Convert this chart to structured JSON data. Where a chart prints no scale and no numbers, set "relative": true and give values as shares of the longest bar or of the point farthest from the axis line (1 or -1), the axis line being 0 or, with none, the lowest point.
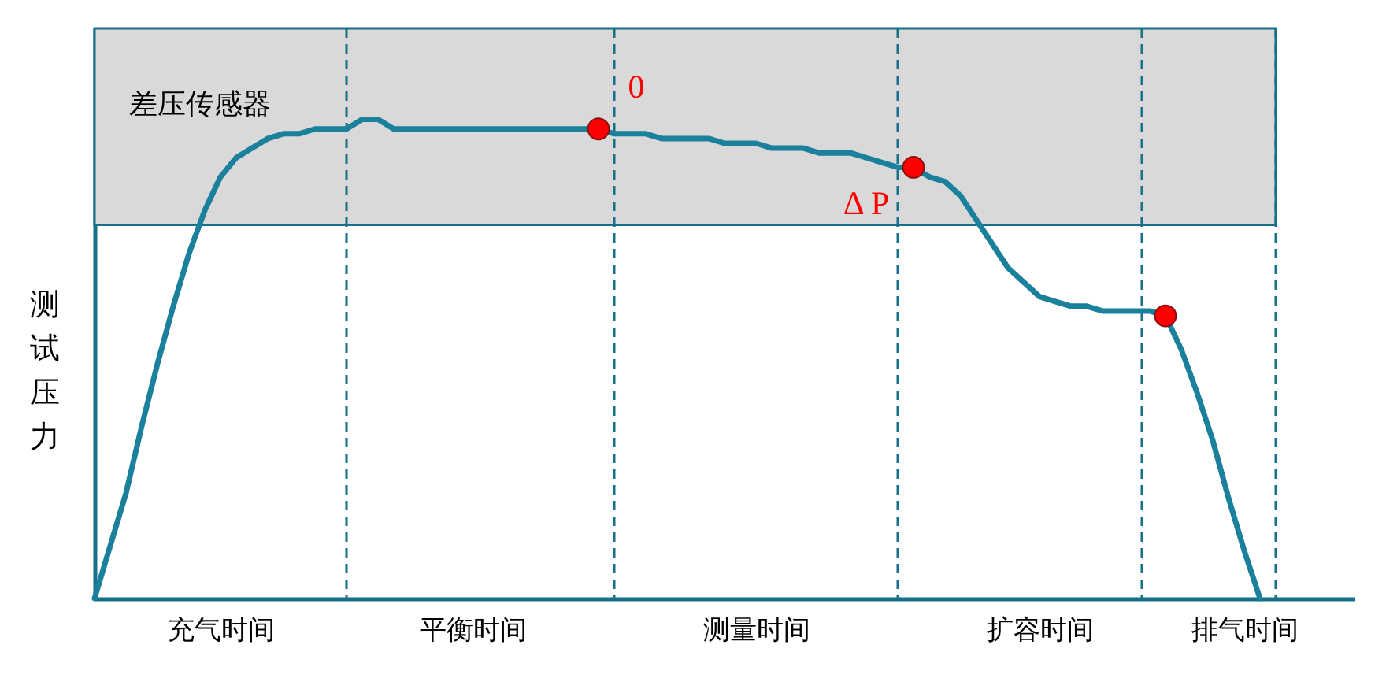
{
  "chart_data": {
    "type": "line",
    "relative": true,
    "ylabel": "测试压力",
    "categories": [
      null,
      null,
      null,
      null,
      null,
      null,
      null,
      null,
      "充气时间",
      null,
      null,
      null,
      null,
      null,
      null,
      null,
      null,
      null,
      null,
      null,
      null,
      null,
      null,
      null,
      "平衡时间",
      null,
      null,
      null,
      null,
      null,
      null,
      null,
      null,
      null,
      null,
      null,
      null,
      null,
      null,
      null,
      null,
      null,
      "测量时间",
      null,
      null,
      null,
      null,
      null,
      null,
      null,
      null,
      null,
      null,
      null,
      null,
      null,
      null,
      null,
      null,
      null,
      "扩容时间",
      null,
      null,
      null,
      null,
      null,
      null,
      null,
      null,
      null,
      null,
      null,
      null,
      "排气时间",
      null,
      null
    ],
    "series": [
      {
        "color": "#1a809c",
        "values": [
          0,
          0.11,
          0.22,
          0.36,
          0.49,
          0.61,
          0.72,
          0.81,
          0.88,
          0.92,
          0.94,
          0.96,
          0.97,
          0.97,
          0.98,
          0.98,
          0.98,
          1,
          1,
          0.98,
          0.98,
          0.98,
          0.98,
          0.98,
          0.98,
          0.98,
          0.98,
          0.98,
          0.98,
          0.98,
          0.98,
          0.98,
          0.98,
          0.97,
          0.97,
          0.97,
          0.96,
          0.96,
          0.96,
          0.96,
          0.95,
          0.95,
          0.95,
          0.94,
          0.94,
          0.94,
          0.93,
          0.93,
          0.93,
          0.92,
          0.91,
          0.9,
          0.9,
          0.88,
          0.87,
          0.84,
          0.79,
          0.74,
          0.69,
          0.66,
          0.63,
          0.62,
          0.61,
          0.61,
          0.6,
          0.6,
          0.6,
          0.6,
          0.59,
          0.52,
          0.43,
          0.33,
          0.21,
          0.1,
          0,
          null
        ]
      },
      {
        "type": "scatter",
        "color": "#ff0000",
        "values": [
          null,
          null,
          null,
          null,
          null,
          null,
          null,
          null,
          null,
          null,
          null,
          null,
          null,
          null,
          null,
          null,
          null,
          null,
          null,
          null,
          null,
          null,
          null,
          null,
          null,
          null,
          null,
          null,
          null,
          null,
          null,
          null,
          0.98,
          null,
          null,
          null,
          null,
          null,
          null,
          null,
          null,
          null,
          null,
          null,
          null,
          null,
          null,
          null,
          null,
          null,
          null,
          null,
          0.9,
          null,
          null,
          null,
          null,
          null,
          null,
          null,
          null,
          null,
          null,
          null,
          null,
          null,
          null,
          null,
          0.59,
          null,
          null,
          null,
          null,
          null,
          null,
          null
        ]
      }
    ],
    "bands": [
      {
        "axis": "y",
        "from": 0.78,
        "to": 1.19,
        "label": "差压传感器",
        "color": "#d9d9d9"
      }
    ],
    "annotations": [
      {
        "text": "0",
        "y": 0.98
      },
      {
        "text": "Δ P",
        "y": 0.9
      }
    ],
    "grid": false
  }
}
